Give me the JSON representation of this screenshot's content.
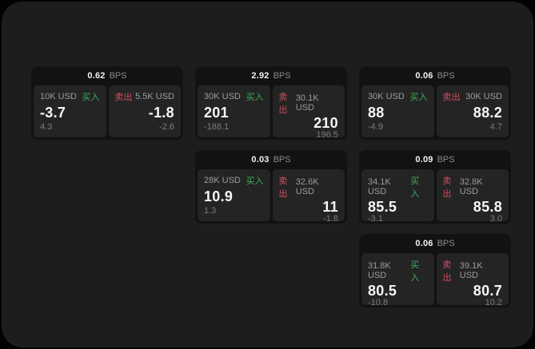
{
  "labels": {
    "bps_unit": "BPS",
    "buy": "买入",
    "sell": "卖出"
  },
  "colors": {
    "buy_green": "#3fae5c",
    "sell_red": "#d04f5f",
    "surface": "#1d1d1d",
    "card": "#121212",
    "panel": "#242424"
  },
  "cards": [
    {
      "bps": "0.62",
      "buy": {
        "size": "10K USD",
        "side": "买入",
        "price": "-3.7",
        "change": "4.3"
      },
      "sell": {
        "side": "卖出",
        "size": "5.5K USD",
        "price": "-1.8",
        "change": "-2.6"
      }
    },
    {
      "bps": "2.92",
      "buy": {
        "size": "30K USD",
        "side": "买入",
        "price": "201",
        "change": "-188.1"
      },
      "sell": {
        "side": "卖出",
        "size": "30.1K USD",
        "price": "210",
        "change": "196.5"
      }
    },
    {
      "bps": "0.06",
      "buy": {
        "size": "30K USD",
        "side": "买入",
        "price": "88",
        "change": "-4.9"
      },
      "sell": {
        "side": "卖出",
        "size": "30K USD",
        "price": "88.2",
        "change": "4.7"
      }
    },
    {
      "bps": "0.03",
      "buy": {
        "size": "28K USD",
        "side": "买入",
        "price": "10.9",
        "change": "1.3"
      },
      "sell": {
        "side": "卖出",
        "size": "32.6K USD",
        "price": "11",
        "change": "-1.8"
      }
    },
    {
      "bps": "0.09",
      "buy": {
        "size": "34.1K USD",
        "side": "买入",
        "price": "85.5",
        "change": "-3.1"
      },
      "sell": {
        "side": "卖出",
        "size": "32.8K USD",
        "price": "85.8",
        "change": "3.0"
      }
    },
    {
      "bps": "0.06",
      "buy": {
        "size": "31.8K USD",
        "side": "买入",
        "price": "80.5",
        "change": "-10.8"
      },
      "sell": {
        "side": "卖出",
        "size": "39.1K USD",
        "price": "80.7",
        "change": "10.2"
      }
    }
  ]
}
